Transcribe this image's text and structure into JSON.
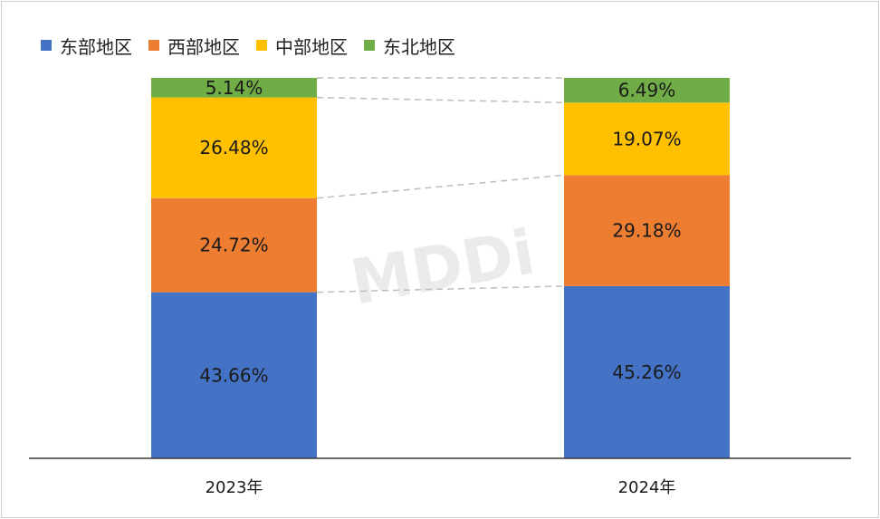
{
  "watermark": "MDDi",
  "legend": [
    {
      "name": "东部地区",
      "color": "#4472C4"
    },
    {
      "name": "西部地区",
      "color": "#ED7D31"
    },
    {
      "name": "中部地区",
      "color": "#FFC000"
    },
    {
      "name": "东北地区",
      "color": "#70AD47"
    }
  ],
  "chart_data": {
    "type": "bar",
    "stacked": true,
    "categories": [
      "2023年",
      "2024年"
    ],
    "series": [
      {
        "name": "东部地区",
        "values": [
          43.66,
          45.26
        ],
        "labels": [
          "43.66%",
          "45.26%"
        ],
        "color": "#4472C4"
      },
      {
        "name": "西部地区",
        "values": [
          24.72,
          29.18
        ],
        "labels": [
          "24.72%",
          "29.18%"
        ],
        "color": "#ED7D31"
      },
      {
        "name": "中部地区",
        "values": [
          26.48,
          19.07
        ],
        "labels": [
          "26.48%",
          "19.07%"
        ],
        "color": "#FFC000"
      },
      {
        "name": "东北地区",
        "values": [
          5.14,
          6.49
        ],
        "labels": [
          "5.14%",
          "6.49%"
        ],
        "color": "#70AD47"
      }
    ],
    "ylim": [
      0,
      100
    ],
    "grid": false,
    "legend_position": "top-left",
    "series_lines": true
  }
}
